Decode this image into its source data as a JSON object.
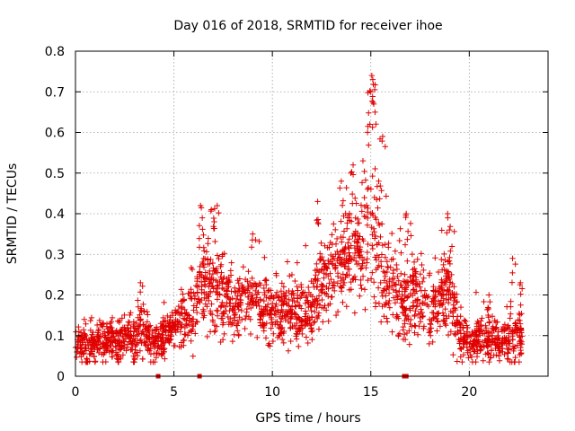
{
  "chart_data": {
    "type": "scatter",
    "title": "Day 016 of 2018, SRMTID for receiver ihoe",
    "xlabel": "GPS time / hours",
    "ylabel": "SRMTID / TECUs",
    "xlim": [
      0,
      24
    ],
    "ylim": [
      0,
      0.8
    ],
    "xticks": [
      0,
      5,
      10,
      15,
      20
    ],
    "yticks": [
      0,
      0.1,
      0.2,
      0.3,
      0.4,
      0.5,
      0.6,
      0.7,
      0.8
    ],
    "xtick_labels": [
      "0",
      "5",
      "10",
      "15",
      "20"
    ],
    "ytick_labels": [
      "0",
      "0.1",
      "0.2",
      "0.3",
      "0.4",
      "0.5",
      "0.6",
      "0.7",
      "0.8"
    ],
    "grid": true,
    "marker": "+",
    "color": "#e00000",
    "profile": [
      {
        "x": 0.0,
        "y": 0.08,
        "s": 0.03
      },
      {
        "x": 0.5,
        "y": 0.07,
        "s": 0.03
      },
      {
        "x": 1.0,
        "y": 0.08,
        "s": 0.03
      },
      {
        "x": 1.5,
        "y": 0.09,
        "s": 0.03
      },
      {
        "x": 2.0,
        "y": 0.08,
        "s": 0.03
      },
      {
        "x": 2.5,
        "y": 0.09,
        "s": 0.03
      },
      {
        "x": 3.0,
        "y": 0.09,
        "s": 0.035
      },
      {
        "x": 3.3,
        "y": 0.13,
        "s": 0.05
      },
      {
        "x": 3.6,
        "y": 0.1,
        "s": 0.04
      },
      {
        "x": 4.0,
        "y": 0.08,
        "s": 0.03
      },
      {
        "x": 4.5,
        "y": 0.09,
        "s": 0.03
      },
      {
        "x": 5.0,
        "y": 0.12,
        "s": 0.04
      },
      {
        "x": 5.5,
        "y": 0.14,
        "s": 0.05
      },
      {
        "x": 6.0,
        "y": 0.17,
        "s": 0.06
      },
      {
        "x": 6.5,
        "y": 0.21,
        "s": 0.07
      },
      {
        "x": 7.0,
        "y": 0.22,
        "s": 0.07
      },
      {
        "x": 7.5,
        "y": 0.2,
        "s": 0.06
      },
      {
        "x": 8.0,
        "y": 0.17,
        "s": 0.05
      },
      {
        "x": 8.5,
        "y": 0.17,
        "s": 0.05
      },
      {
        "x": 9.0,
        "y": 0.18,
        "s": 0.05
      },
      {
        "x": 9.5,
        "y": 0.16,
        "s": 0.05
      },
      {
        "x": 10.0,
        "y": 0.15,
        "s": 0.05
      },
      {
        "x": 10.5,
        "y": 0.15,
        "s": 0.05
      },
      {
        "x": 11.0,
        "y": 0.17,
        "s": 0.05
      },
      {
        "x": 11.5,
        "y": 0.14,
        "s": 0.05
      },
      {
        "x": 12.0,
        "y": 0.16,
        "s": 0.05
      },
      {
        "x": 12.5,
        "y": 0.22,
        "s": 0.06
      },
      {
        "x": 13.0,
        "y": 0.25,
        "s": 0.07
      },
      {
        "x": 13.5,
        "y": 0.28,
        "s": 0.07
      },
      {
        "x": 14.0,
        "y": 0.32,
        "s": 0.08
      },
      {
        "x": 14.5,
        "y": 0.3,
        "s": 0.08
      },
      {
        "x": 15.0,
        "y": 0.35,
        "s": 0.1
      },
      {
        "x": 15.5,
        "y": 0.3,
        "s": 0.09
      },
      {
        "x": 16.0,
        "y": 0.22,
        "s": 0.07
      },
      {
        "x": 16.5,
        "y": 0.18,
        "s": 0.06
      },
      {
        "x": 17.0,
        "y": 0.22,
        "s": 0.07
      },
      {
        "x": 17.5,
        "y": 0.18,
        "s": 0.06
      },
      {
        "x": 18.0,
        "y": 0.15,
        "s": 0.05
      },
      {
        "x": 18.5,
        "y": 0.2,
        "s": 0.06
      },
      {
        "x": 19.0,
        "y": 0.22,
        "s": 0.07
      },
      {
        "x": 19.5,
        "y": 0.1,
        "s": 0.04
      },
      {
        "x": 20.0,
        "y": 0.08,
        "s": 0.03
      },
      {
        "x": 20.5,
        "y": 0.09,
        "s": 0.03
      },
      {
        "x": 21.0,
        "y": 0.09,
        "s": 0.035
      },
      {
        "x": 21.5,
        "y": 0.08,
        "s": 0.03
      },
      {
        "x": 22.0,
        "y": 0.09,
        "s": 0.035
      },
      {
        "x": 22.5,
        "y": 0.1,
        "s": 0.04
      },
      {
        "x": 22.7,
        "y": 0.09,
        "s": 0.04
      }
    ],
    "peaks": [
      {
        "x": 3.3,
        "y": 0.23
      },
      {
        "x": 6.35,
        "y": 0.42
      },
      {
        "x": 6.9,
        "y": 0.41
      },
      {
        "x": 7.2,
        "y": 0.42
      },
      {
        "x": 9.0,
        "y": 0.35
      },
      {
        "x": 12.3,
        "y": 0.43
      },
      {
        "x": 13.5,
        "y": 0.48
      },
      {
        "x": 14.1,
        "y": 0.52
      },
      {
        "x": 14.6,
        "y": 0.53
      },
      {
        "x": 14.95,
        "y": 0.62
      },
      {
        "x": 15.0,
        "y": 0.7
      },
      {
        "x": 15.05,
        "y": 0.74
      },
      {
        "x": 15.1,
        "y": 0.73
      },
      {
        "x": 15.15,
        "y": 0.67
      },
      {
        "x": 15.4,
        "y": 0.48
      },
      {
        "x": 15.6,
        "y": 0.59
      },
      {
        "x": 16.8,
        "y": 0.4
      },
      {
        "x": 18.9,
        "y": 0.4
      },
      {
        "x": 21.0,
        "y": 0.2
      },
      {
        "x": 22.2,
        "y": 0.29
      },
      {
        "x": 22.6,
        "y": 0.23
      }
    ],
    "zero_markers": [
      {
        "x": 4.2,
        "y": 0
      },
      {
        "x": 6.3,
        "y": 0
      },
      {
        "x": 16.7,
        "y": 0
      },
      {
        "x": 16.8,
        "y": 0
      }
    ],
    "point_count": 2200
  }
}
